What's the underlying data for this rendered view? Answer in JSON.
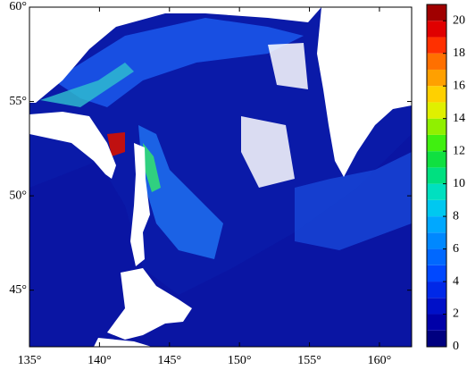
{
  "chart_data": {
    "type": "map",
    "xlim": [
      135,
      162.3
    ],
    "ylim": [
      42,
      60
    ],
    "xticks": [
      {
        "value": 135,
        "label": "135°"
      },
      {
        "value": 140,
        "label": "140°"
      },
      {
        "value": 145,
        "label": "145°"
      },
      {
        "value": 150,
        "label": "150°"
      },
      {
        "value": 155,
        "label": "155°"
      },
      {
        "value": 160,
        "label": "160°"
      }
    ],
    "yticks": [
      {
        "value": 45,
        "label": "45°"
      },
      {
        "value": 50,
        "label": "50°"
      },
      {
        "value": 55,
        "label": "55°"
      },
      {
        "value": 60,
        "label": "60°"
      }
    ],
    "colorbar": {
      "lim": [
        0,
        21
      ],
      "ticks": [
        0,
        2,
        4,
        6,
        8,
        10,
        12,
        14,
        16,
        18,
        20
      ],
      "colors": [
        "#000080",
        "#0000a8",
        "#0010c8",
        "#0028e8",
        "#0048ff",
        "#0068ff",
        "#0088ff",
        "#00a8ff",
        "#00c8f0",
        "#00e0c0",
        "#00e080",
        "#10e040",
        "#40f010",
        "#90f000",
        "#e0f000",
        "#ffd000",
        "#ffa000",
        "#ff7000",
        "#ff3000",
        "#e00000",
        "#a00000"
      ]
    }
  }
}
